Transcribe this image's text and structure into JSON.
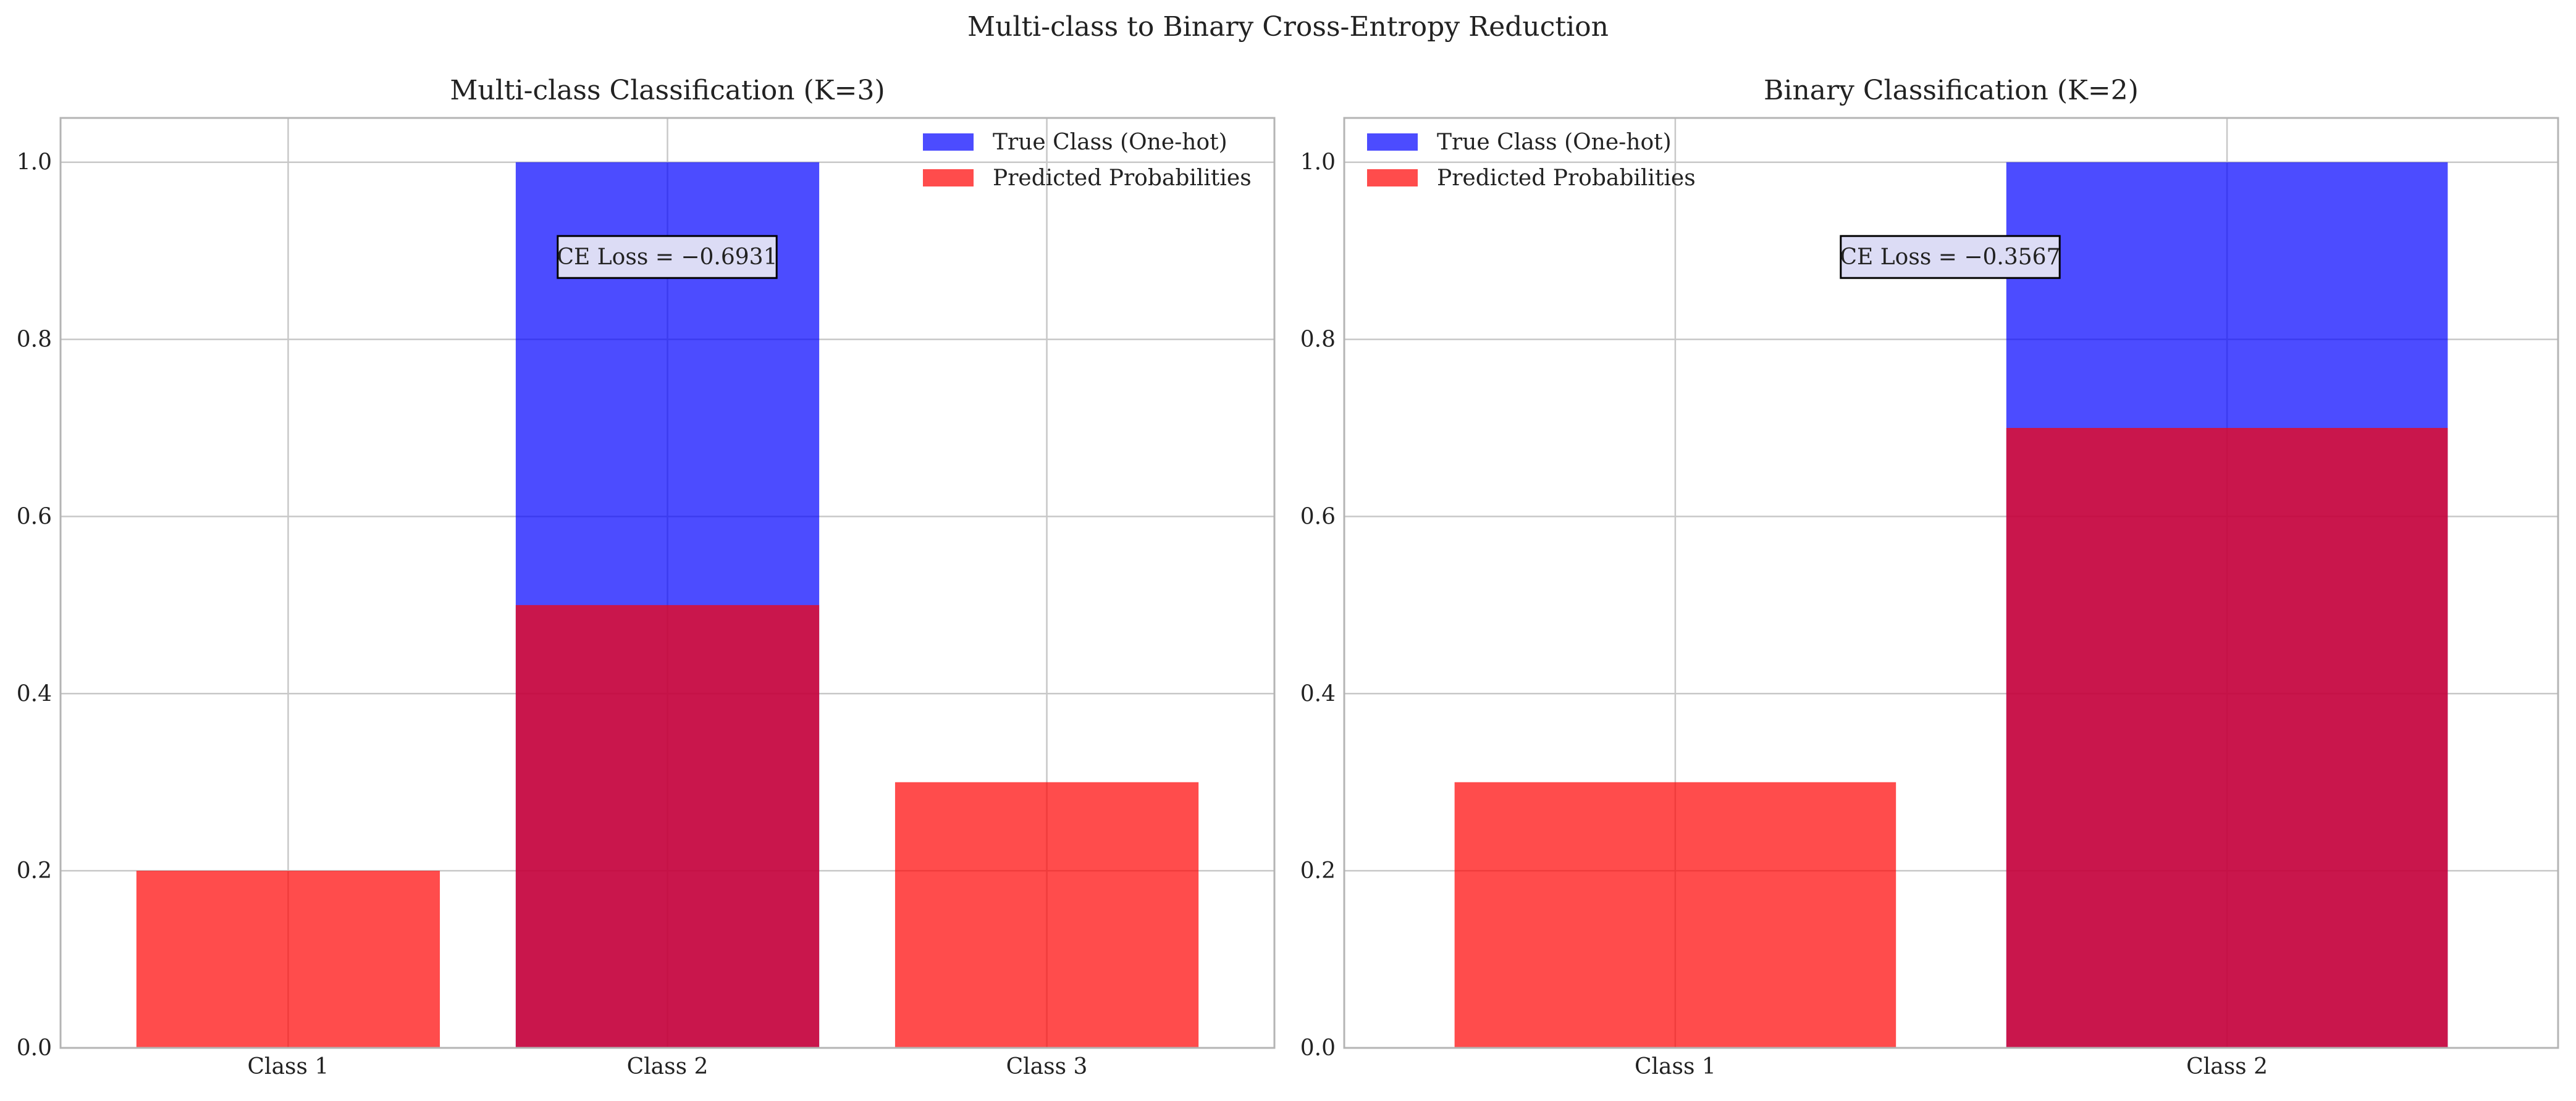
{
  "figure": {
    "suptitle": "Multi-class to Binary Cross-Entropy Reduction"
  },
  "colors": {
    "true_class": "#0000ff",
    "predicted": "#ff0000",
    "grid": "#c8c8c8",
    "axes_edge": "#b4b4b4",
    "annotation_bg": "#dcdcf5"
  },
  "chart_data": [
    {
      "type": "bar",
      "title": "Multi-class Classification (K=3)",
      "categories": [
        "Class 1",
        "Class 2",
        "Class 3"
      ],
      "series": [
        {
          "name": "True Class (One-hot)",
          "values": [
            0,
            1.0,
            0
          ],
          "color": "#0000ff",
          "alpha": 0.7
        },
        {
          "name": "Predicted Probabilities",
          "values": [
            0.2,
            0.5,
            0.3
          ],
          "color": "#ff0000",
          "alpha": 0.7
        }
      ],
      "yticks": [
        "0.0",
        "0.2",
        "0.4",
        "0.6",
        "0.8",
        "1.0"
      ],
      "ylim": [
        0,
        1.05
      ],
      "xlabel": "",
      "ylabel": "",
      "grid": true,
      "legend": "upper right",
      "annotation": "CE Loss = −0.6931"
    },
    {
      "type": "bar",
      "title": "Binary Classification (K=2)",
      "categories": [
        "Class 1",
        "Class 2"
      ],
      "series": [
        {
          "name": "True Class (One-hot)",
          "values": [
            0,
            1.0
          ],
          "color": "#0000ff",
          "alpha": 0.7
        },
        {
          "name": "Predicted Probabilities",
          "values": [
            0.3,
            0.7
          ],
          "color": "#ff0000",
          "alpha": 0.7
        }
      ],
      "yticks": [
        "0.0",
        "0.2",
        "0.4",
        "0.6",
        "0.8",
        "1.0"
      ],
      "ylim": [
        0,
        1.05
      ],
      "xlabel": "",
      "ylabel": "",
      "grid": true,
      "legend": "upper left",
      "annotation": "CE Loss = −0.3567"
    }
  ]
}
